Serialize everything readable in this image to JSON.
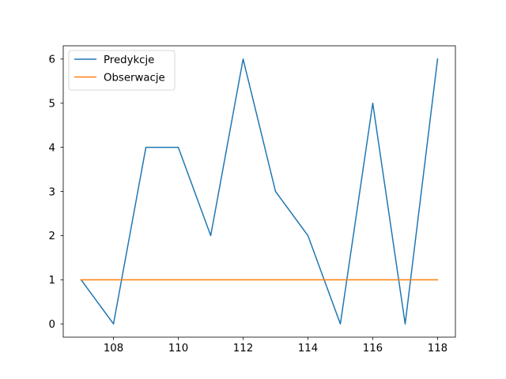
{
  "chart_data": {
    "type": "line",
    "title": "",
    "xlabel": "",
    "ylabel": "",
    "x": [
      107,
      108,
      109,
      110,
      111,
      112,
      113,
      114,
      115,
      116,
      117,
      118
    ],
    "xlim": [
      106.45,
      118.55
    ],
    "ylim": [
      -0.3,
      6.3
    ],
    "xticks": [
      108,
      110,
      112,
      114,
      116,
      118
    ],
    "yticks": [
      0,
      1,
      2,
      3,
      4,
      5,
      6
    ],
    "grid": false,
    "legend_position": "upper-left",
    "series": [
      {
        "name": "Predykcje",
        "color": "#1f77b4",
        "values": [
          1,
          0,
          4,
          4,
          2,
          6,
          3,
          2,
          0,
          5,
          0,
          6
        ]
      },
      {
        "name": "Obserwacje",
        "color": "#ff7f0e",
        "values": [
          1,
          1,
          1,
          1,
          1,
          1,
          1,
          1,
          1,
          1,
          1,
          1
        ]
      }
    ]
  }
}
